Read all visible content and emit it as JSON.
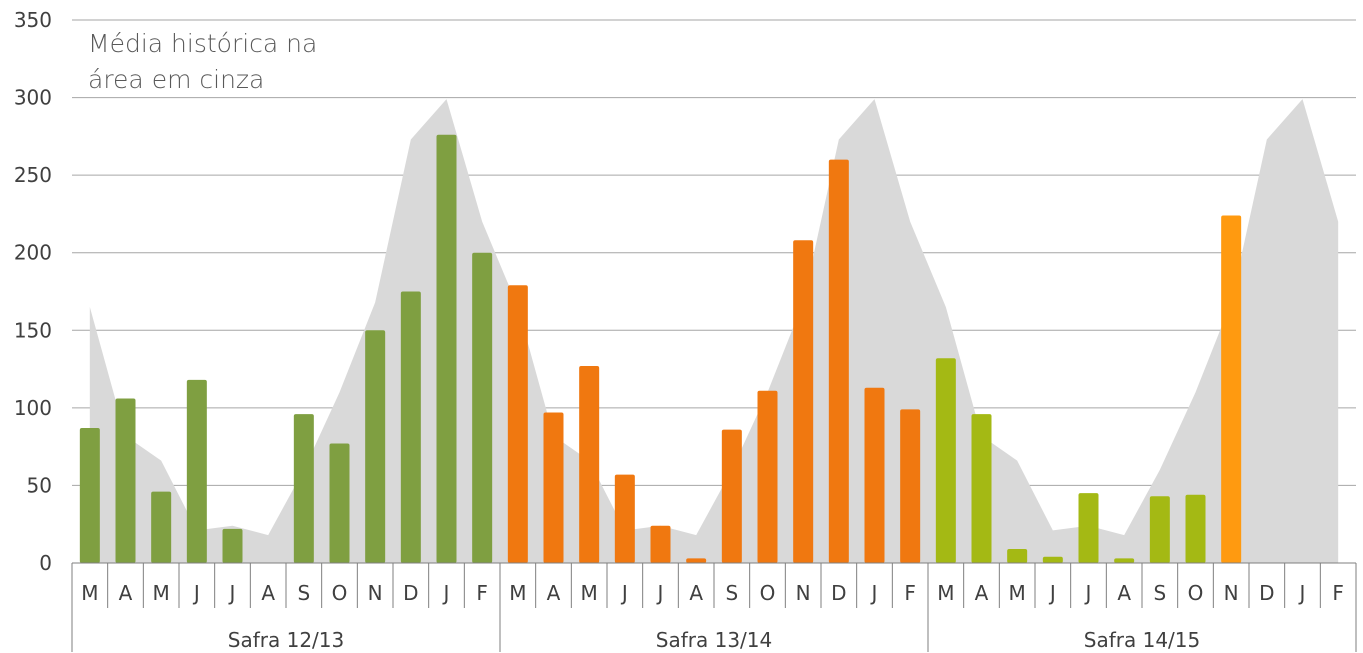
{
  "chart_data": {
    "type": "bar",
    "ylim": [
      0,
      350
    ],
    "yticks": [
      "0",
      "50",
      "100",
      "150",
      "200",
      "250",
      "300",
      "350"
    ],
    "ytick_values": [
      0,
      50,
      100,
      150,
      200,
      250,
      300,
      350
    ],
    "grid": true,
    "annotation": [
      "Média histórica na",
      "área em cinza"
    ],
    "months": [
      "M",
      "A",
      "M",
      "J",
      "J",
      "A",
      "S",
      "O",
      "N",
      "D",
      "J",
      "F",
      "M",
      "A",
      "M",
      "J",
      "J",
      "A",
      "S",
      "O",
      "N",
      "D",
      "J",
      "F",
      "M",
      "A",
      "M",
      "J",
      "J",
      "A",
      "S",
      "O",
      "N",
      "D",
      "J",
      "F"
    ],
    "groups": [
      {
        "label": "Safra 12/13",
        "start": 0,
        "count": 12
      },
      {
        "label": "Safra 13/14",
        "start": 12,
        "count": 12
      },
      {
        "label": "Safra 14/15",
        "start": 24,
        "count": 12
      }
    ],
    "historical_average": [
      165,
      82,
      66,
      21,
      24,
      18,
      60,
      110,
      168,
      273,
      299,
      220,
      165,
      82,
      66,
      21,
      24,
      18,
      60,
      110,
      168,
      273,
      299,
      220,
      165,
      82,
      66,
      21,
      24,
      18,
      60,
      110,
      168,
      273,
      299,
      220
    ],
    "series": [
      {
        "values": [
          87,
          106,
          46,
          118,
          22,
          0,
          96,
          77,
          150,
          175,
          276,
          200,
          null,
          null,
          null,
          null,
          null,
          null,
          null,
          null,
          null,
          null,
          null,
          null,
          null,
          null,
          null,
          null,
          null,
          null,
          null,
          null,
          null,
          null,
          null,
          null
        ]
      },
      {
        "values": [
          null,
          null,
          null,
          null,
          null,
          null,
          null,
          null,
          null,
          null,
          null,
          null,
          179,
          97,
          127,
          57,
          24,
          3,
          86,
          111,
          208,
          260,
          113,
          99,
          null,
          null,
          null,
          null,
          null,
          null,
          null,
          null,
          null,
          null,
          null,
          null
        ]
      },
      {
        "values": [
          null,
          null,
          null,
          null,
          null,
          null,
          null,
          null,
          null,
          null,
          null,
          null,
          null,
          null,
          null,
          null,
          null,
          null,
          null,
          null,
          null,
          null,
          null,
          null,
          132,
          96,
          9,
          4,
          45,
          3,
          43,
          44,
          224,
          null,
          null,
          null
        ]
      }
    ],
    "bar_colors": {
      "s12_13": "#7F9F41",
      "s13_14": "#F07810",
      "s14_15": "#A4B914",
      "s14_15_last": "#FF9A10"
    },
    "area_color": "#D9D9D9"
  }
}
